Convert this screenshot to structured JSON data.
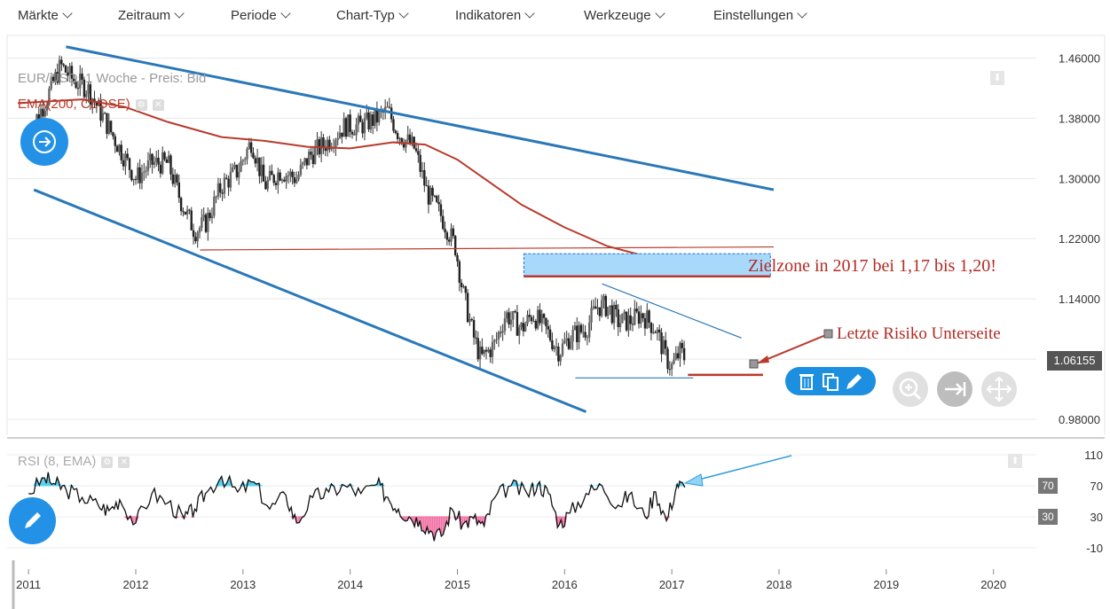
{
  "menu": [
    {
      "label": "Märkte"
    },
    {
      "label": "Zeitraum"
    },
    {
      "label": "Periode"
    },
    {
      "label": "Chart-Typ"
    },
    {
      "label": "Indikatoren"
    },
    {
      "label": "Werkzeuge"
    },
    {
      "label": "Einstellungen"
    }
  ],
  "legend": {
    "instrument": "EUR/USD, 1 Woche - Preis: Bid",
    "ema": "EMA(200, CLOSE)",
    "rsi": "RSI (8, EMA)"
  },
  "annotations": {
    "target_zone": "Zielzone in 2017 bei 1,17 bis 1,20!",
    "last_risk": "Letzte Risiko Unterseite"
  },
  "current_price": "1.06155",
  "rsi_tags": {
    "upper": "70",
    "lower": "30"
  },
  "icons": {
    "left_nav": "arrow-right-circle-icon",
    "pencil_fab": "pencil-icon",
    "toolbar": [
      "trash-icon",
      "copy-icon",
      "pencil-icon"
    ],
    "controls": [
      "zoom-icon",
      "jump-to-end-icon",
      "move-icon"
    ]
  },
  "colors": {
    "channel": "#2a78b8",
    "ema": "#b83a2b",
    "target_zone_fill": "#a8d8fa",
    "target_zone_border": "#1c6fc9",
    "rsi_overbought": "#5ad0ef",
    "rsi_oversold": "#f06aa0",
    "accent": "#1c8fe0"
  },
  "chart_data": [
    {
      "type": "candlestick",
      "title": "EUR/USD, 1 Woche - Preis: Bid",
      "x_ticks": [
        "2011",
        "2012",
        "2013",
        "2014",
        "2015",
        "2016",
        "2017",
        "2018",
        "2019",
        "2020"
      ],
      "y_ticks": [
        "1.46000",
        "1.38000",
        "1.30000",
        "1.22000",
        "1.14000",
        "1.06000",
        "0.98000"
      ],
      "ylim": [
        0.96,
        1.49
      ],
      "xlim": [
        2010.8,
        2020.4
      ],
      "close_path": [
        [
          2011.0,
          1.36
        ],
        [
          2011.15,
          1.4
        ],
        [
          2011.3,
          1.45
        ],
        [
          2011.42,
          1.43
        ],
        [
          2011.55,
          1.42
        ],
        [
          2011.7,
          1.38
        ],
        [
          2011.85,
          1.34
        ],
        [
          2012.0,
          1.3
        ],
        [
          2012.15,
          1.32
        ],
        [
          2012.3,
          1.32
        ],
        [
          2012.42,
          1.27
        ],
        [
          2012.55,
          1.23
        ],
        [
          2012.65,
          1.24
        ],
        [
          2012.8,
          1.29
        ],
        [
          2012.95,
          1.31
        ],
        [
          2013.08,
          1.35
        ],
        [
          2013.2,
          1.29
        ],
        [
          2013.35,
          1.31
        ],
        [
          2013.5,
          1.3
        ],
        [
          2013.62,
          1.33
        ],
        [
          2013.8,
          1.35
        ],
        [
          2013.95,
          1.37
        ],
        [
          2014.1,
          1.37
        ],
        [
          2014.25,
          1.38
        ],
        [
          2014.35,
          1.39
        ],
        [
          2014.45,
          1.36
        ],
        [
          2014.6,
          1.34
        ],
        [
          2014.72,
          1.28
        ],
        [
          2014.85,
          1.25
        ],
        [
          2014.98,
          1.21
        ],
        [
          2015.05,
          1.15
        ],
        [
          2015.15,
          1.09
        ],
        [
          2015.22,
          1.06
        ],
        [
          2015.35,
          1.08
        ],
        [
          2015.45,
          1.12
        ],
        [
          2015.6,
          1.1
        ],
        [
          2015.7,
          1.12
        ],
        [
          2015.82,
          1.1
        ],
        [
          2015.95,
          1.07
        ],
        [
          2016.05,
          1.09
        ],
        [
          2016.2,
          1.1
        ],
        [
          2016.3,
          1.13
        ],
        [
          2016.4,
          1.13
        ],
        [
          2016.5,
          1.11
        ],
        [
          2016.6,
          1.11
        ],
        [
          2016.72,
          1.12
        ],
        [
          2016.85,
          1.1
        ],
        [
          2016.95,
          1.06
        ],
        [
          2017.0,
          1.05
        ],
        [
          2017.08,
          1.07
        ],
        [
          2017.12,
          1.06155
        ]
      ],
      "ema_200": [
        [
          2010.9,
          1.4
        ],
        [
          2011.5,
          1.405
        ],
        [
          2011.9,
          1.395
        ],
        [
          2012.3,
          1.375
        ],
        [
          2012.8,
          1.355
        ],
        [
          2013.2,
          1.35
        ],
        [
          2013.6,
          1.342
        ],
        [
          2014.0,
          1.34
        ],
        [
          2014.4,
          1.348
        ],
        [
          2014.7,
          1.345
        ],
        [
          2015.0,
          1.325
        ],
        [
          2015.3,
          1.295
        ],
        [
          2015.6,
          1.265
        ],
        [
          2016.0,
          1.235
        ],
        [
          2016.4,
          1.21
        ],
        [
          2016.8,
          1.195
        ],
        [
          2017.1,
          1.18
        ]
      ],
      "overlays": {
        "channel_upper": [
          [
            2011.35,
            1.475
          ],
          [
            2017.95,
            1.285
          ]
        ],
        "channel_lower": [
          [
            2011.05,
            1.285
          ],
          [
            2016.2,
            0.99
          ]
        ],
        "support_2012": [
          [
            2012.6,
            1.205
          ],
          [
            2017.95,
            1.209
          ]
        ],
        "target_zone": {
          "x": [
            2015.62,
            2017.92
          ],
          "y": [
            1.17,
            1.2
          ]
        },
        "triangle_upper": [
          [
            2016.35,
            1.16
          ],
          [
            2017.65,
            1.088
          ]
        ],
        "triangle_lower": [
          [
            2016.1,
            1.035
          ],
          [
            2017.2,
            1.035
          ]
        ],
        "risk_line": [
          [
            2017.15,
            1.039
          ],
          [
            2017.85,
            1.039
          ]
        ]
      }
    },
    {
      "type": "line",
      "title": "RSI (8, EMA)",
      "y_ticks": [
        "110",
        "70",
        "30",
        "-10"
      ],
      "ylim": [
        -15,
        115
      ],
      "thresholds": [
        70,
        30
      ],
      "x": [
        2011.0,
        2011.15,
        2011.25,
        2011.35,
        2011.5,
        2011.65,
        2011.75,
        2011.85,
        2012.0,
        2012.15,
        2012.3,
        2012.45,
        2012.55,
        2012.65,
        2012.8,
        2012.95,
        2013.1,
        2013.25,
        2013.4,
        2013.5,
        2013.65,
        2013.8,
        2013.95,
        2014.1,
        2014.25,
        2014.35,
        2014.45,
        2014.55,
        2014.65,
        2014.75,
        2014.85,
        2014.95,
        2015.05,
        2015.15,
        2015.25,
        2015.35,
        2015.5,
        2015.65,
        2015.75,
        2015.85,
        2015.95,
        2016.05,
        2016.2,
        2016.35,
        2016.5,
        2016.6,
        2016.75,
        2016.85,
        2016.95,
        2017.05,
        2017.12
      ],
      "y": [
        60,
        80,
        72,
        65,
        55,
        45,
        38,
        52,
        22,
        60,
        48,
        28,
        40,
        60,
        82,
        62,
        75,
        40,
        58,
        22,
        55,
        62,
        70,
        60,
        72,
        55,
        40,
        30,
        25,
        12,
        5,
        40,
        20,
        28,
        18,
        55,
        70,
        60,
        72,
        60,
        20,
        35,
        60,
        70,
        45,
        58,
        30,
        62,
        25,
        72,
        68
      ]
    }
  ]
}
